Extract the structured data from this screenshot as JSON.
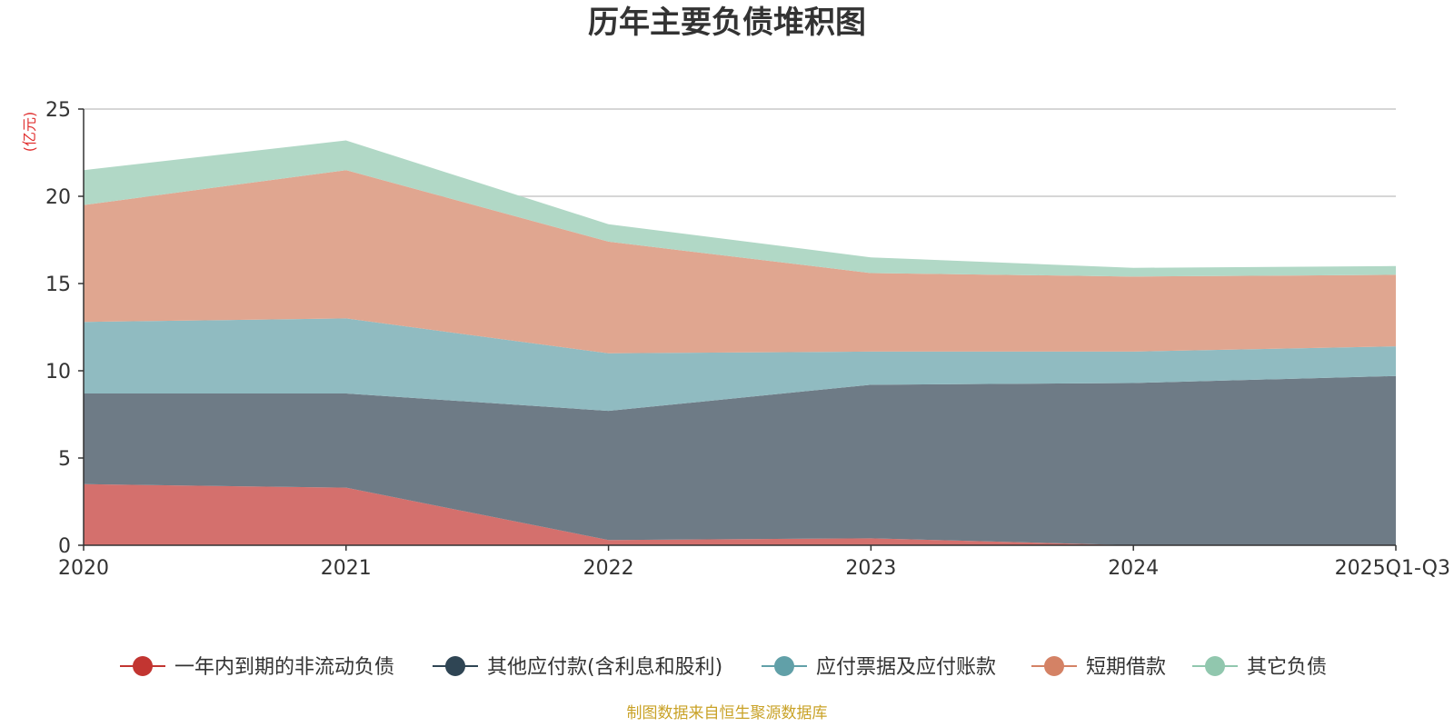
{
  "chart_data": {
    "type": "area",
    "stacked": true,
    "title": "历年主要负债堆积图",
    "ylabel": "(亿元)",
    "xlabel": "",
    "categories": [
      "2020",
      "2021",
      "2022",
      "2023",
      "2024",
      "2025Q1-Q3"
    ],
    "ylim": [
      0,
      25
    ],
    "yticks": [
      0,
      5,
      10,
      15,
      20,
      25
    ],
    "grid": true,
    "legend_position": "bottom",
    "series": [
      {
        "name": "一年内到期的非流动负债",
        "values": [
          3.5,
          3.3,
          0.3,
          0.4,
          0.0,
          0.0
        ],
        "color": "#c23531",
        "fill": "#d4706d"
      },
      {
        "name": "其他应付款(含利息和股利)",
        "values": [
          5.2,
          5.4,
          7.4,
          8.8,
          9.3,
          9.7
        ],
        "color": "#2f4554",
        "fill": "#6e7b86"
      },
      {
        "name": "应付票据及应付账款",
        "values": [
          4.1,
          4.3,
          3.3,
          1.9,
          1.8,
          1.7
        ],
        "color": "#61a0a8",
        "fill": "#90bbc1"
      },
      {
        "name": "短期借款",
        "values": [
          6.7,
          8.5,
          6.4,
          4.5,
          4.3,
          4.1
        ],
        "color": "#d48265",
        "fill": "#e0a690"
      },
      {
        "name": "其它负债",
        "values": [
          2.0,
          1.7,
          1.0,
          0.9,
          0.5,
          0.5
        ],
        "color": "#91c7ae",
        "fill": "#b1d8c6"
      }
    ],
    "source": "制图数据来自恒生聚源数据库",
    "source_color": "#c9a227",
    "unit_color": "#e03030"
  }
}
